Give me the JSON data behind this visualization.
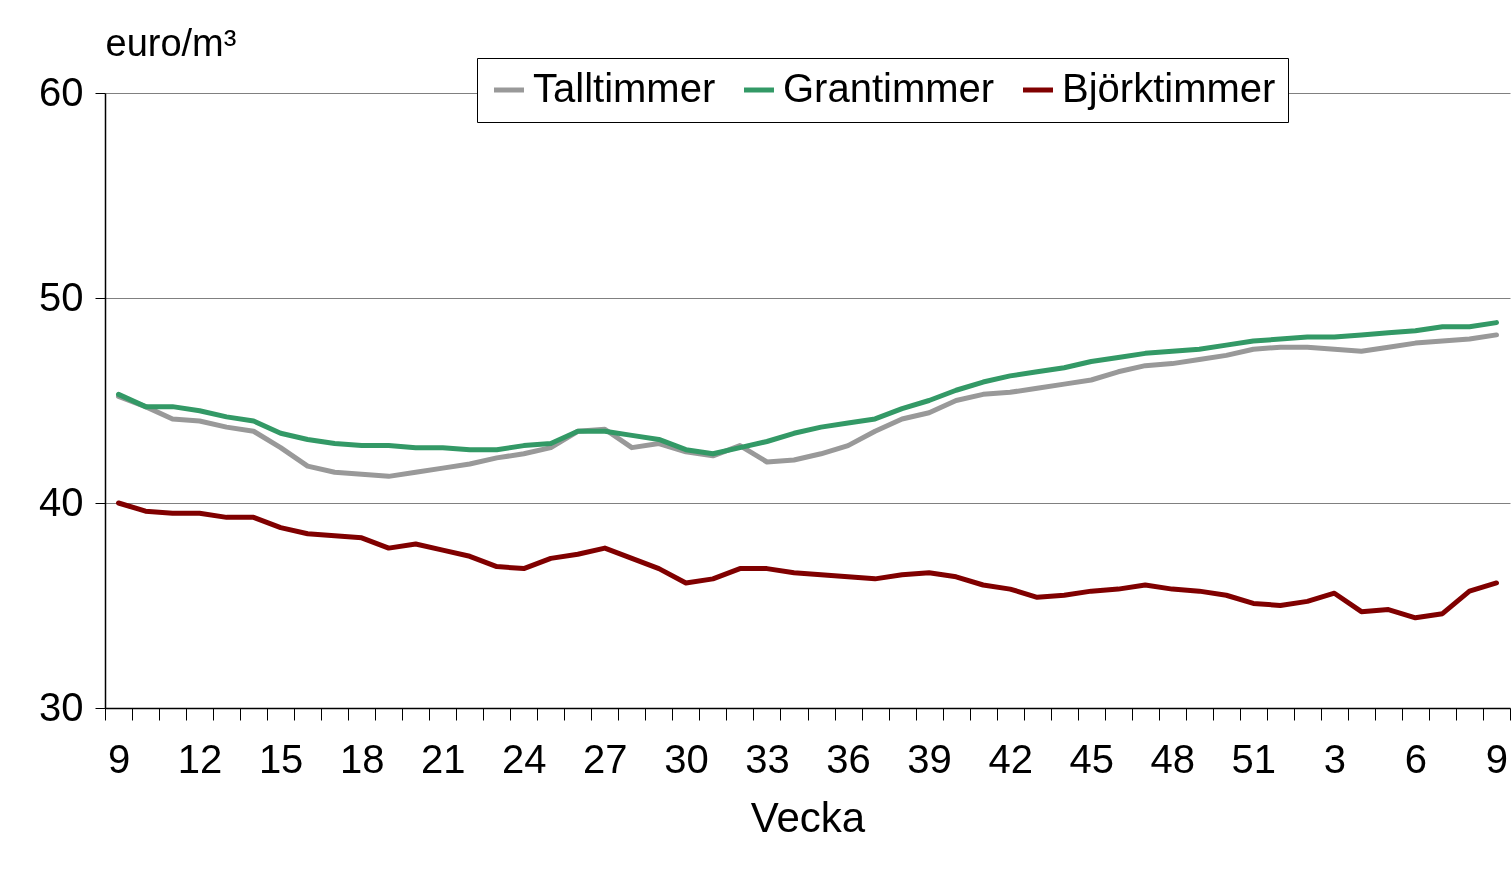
{
  "chart_data": {
    "type": "line",
    "xlabel": "Vecka",
    "ylabel": "euro/m³",
    "categories": [
      "9",
      null,
      null,
      "12",
      null,
      null,
      "15",
      null,
      null,
      "18",
      null,
      null,
      "21",
      null,
      null,
      "24",
      null,
      null,
      "27",
      null,
      null,
      "30",
      null,
      null,
      "33",
      null,
      null,
      "36",
      null,
      null,
      "39",
      null,
      null,
      "42",
      null,
      null,
      "45",
      null,
      null,
      "48",
      null,
      null,
      "51",
      null,
      null,
      "3",
      null,
      null,
      "6",
      null,
      null,
      "9"
    ],
    "ylim": [
      30,
      60
    ],
    "yticks": [
      30,
      40,
      50,
      60
    ],
    "grid": "y",
    "legend": "top right",
    "series": [
      {
        "name": "Talltimmer",
        "color": "#999999",
        "values": [
          45.2,
          44.7,
          44.1,
          44.0,
          43.7,
          43.5,
          42.7,
          41.8,
          41.5,
          41.4,
          41.3,
          41.5,
          41.7,
          41.9,
          42.2,
          42.4,
          42.7,
          43.5,
          43.6,
          42.7,
          42.9,
          42.5,
          42.3,
          42.8,
          42.0,
          42.1,
          42.4,
          42.8,
          43.5,
          44.1,
          44.4,
          45.0,
          45.3,
          45.4,
          45.6,
          45.8,
          46.0,
          46.4,
          46.7,
          46.8,
          47.0,
          47.2,
          47.5,
          47.6,
          47.6,
          47.5,
          47.4,
          47.6,
          47.8,
          47.9,
          48.0,
          48.2
        ]
      },
      {
        "name": "Grantimmer",
        "color": "#339966",
        "values": [
          45.3,
          44.7,
          44.7,
          44.5,
          44.2,
          44.0,
          43.4,
          43.1,
          42.9,
          42.8,
          42.8,
          42.7,
          42.7,
          42.6,
          42.6,
          42.8,
          42.9,
          43.5,
          43.5,
          43.3,
          43.1,
          42.6,
          42.4,
          42.7,
          43.0,
          43.4,
          43.7,
          43.9,
          44.1,
          44.6,
          45.0,
          45.5,
          45.9,
          46.2,
          46.4,
          46.6,
          46.9,
          47.1,
          47.3,
          47.4,
          47.5,
          47.7,
          47.9,
          48.0,
          48.1,
          48.1,
          48.2,
          48.3,
          48.4,
          48.6,
          48.6,
          48.8
        ]
      },
      {
        "name": "Björktimmer",
        "color": "#800000",
        "values": [
          40.0,
          39.6,
          39.5,
          39.5,
          39.3,
          39.3,
          38.8,
          38.5,
          38.4,
          38.3,
          37.8,
          38.0,
          37.7,
          37.4,
          36.9,
          36.8,
          37.3,
          37.5,
          37.8,
          37.3,
          36.8,
          36.1,
          36.3,
          36.8,
          36.8,
          36.6,
          36.5,
          36.4,
          36.3,
          36.5,
          36.6,
          36.4,
          36.0,
          35.8,
          35.4,
          35.5,
          35.7,
          35.8,
          36.0,
          35.8,
          35.7,
          35.5,
          35.1,
          35.0,
          35.2,
          35.6,
          34.7,
          34.8,
          34.4,
          34.6,
          35.7,
          36.1
        ]
      }
    ]
  }
}
